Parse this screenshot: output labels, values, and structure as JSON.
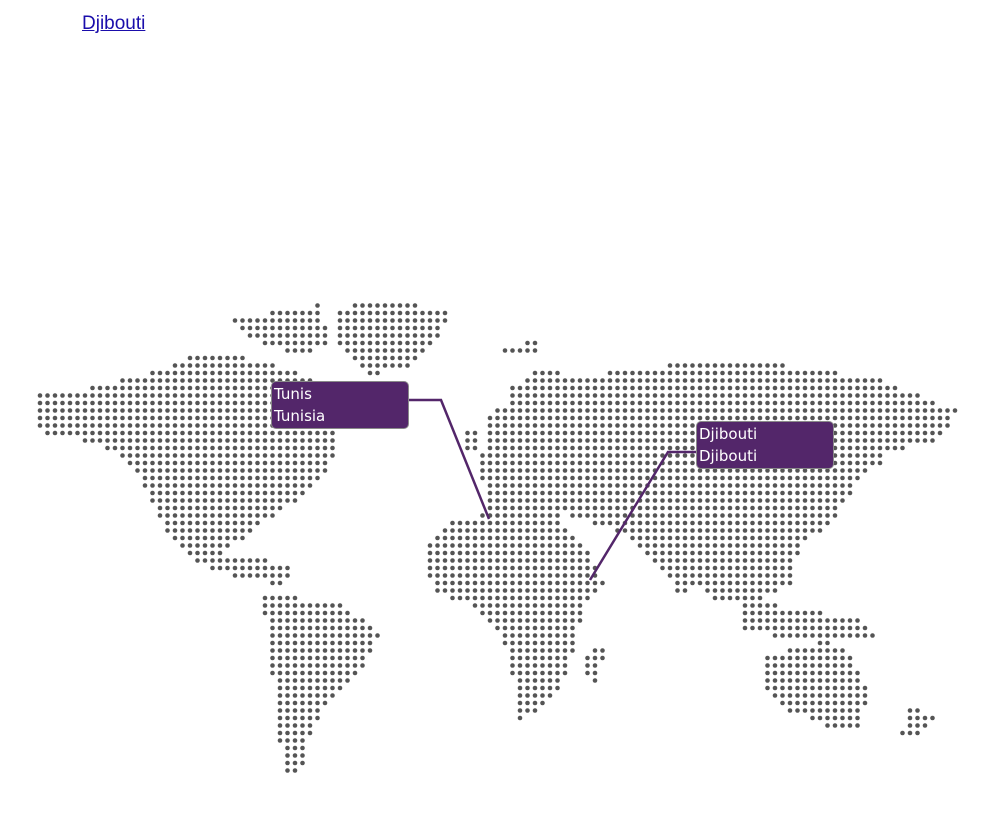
{
  "page": {
    "link_text": "Djibouti "
  },
  "colors": {
    "dot": "#555555",
    "tooltip_bg": "#53266a",
    "connector": "#53266a",
    "link": "#1a0dab"
  },
  "markers": [
    {
      "city": "Tunis",
      "country": "Tunisia"
    },
    {
      "city": "Djibouti",
      "country": "Djibouti"
    }
  ]
}
